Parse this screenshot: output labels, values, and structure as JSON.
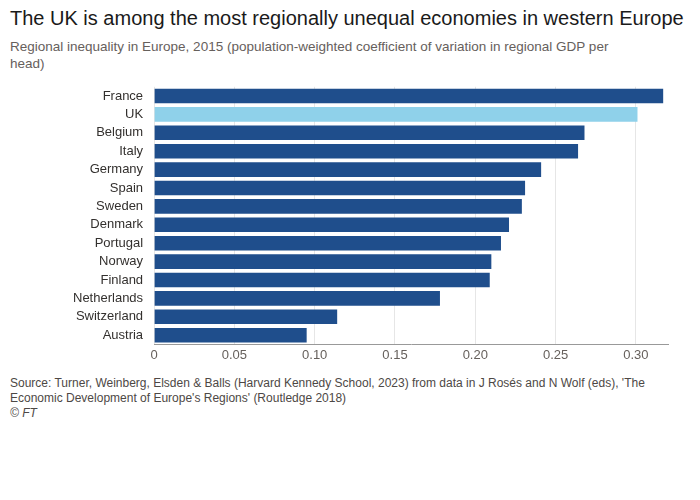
{
  "chart_data": {
    "type": "bar",
    "orientation": "horizontal",
    "title": "The UK is among the most regionally unequal economies in western Europe",
    "subtitle": "Regional inequality in Europe, 2015 (population-weighted coefficient of variation in regional GDP per head)",
    "source": "Source: Turner, Weinberg, Elsden & Balls (Harvard Kennedy School, 2023) from data in J Rosés and N Wolf (eds), 'The Economic Development of Europe's Regions' (Routledge 2018)",
    "credit": "© FT",
    "categories": [
      "France",
      "UK",
      "Belgium",
      "Italy",
      "Germany",
      "Spain",
      "Sweden",
      "Denmark",
      "Portugal",
      "Norway",
      "Finland",
      "Netherlands",
      "Switzerland",
      "Austria"
    ],
    "values": [
      0.317,
      0.301,
      0.268,
      0.264,
      0.241,
      0.231,
      0.229,
      0.221,
      0.216,
      0.21,
      0.209,
      0.178,
      0.114,
      0.095
    ],
    "colors": [
      "#1f4e8c",
      "#8fd1ea",
      "#1f4e8c",
      "#1f4e8c",
      "#1f4e8c",
      "#1f4e8c",
      "#1f4e8c",
      "#1f4e8c",
      "#1f4e8c",
      "#1f4e8c",
      "#1f4e8c",
      "#1f4e8c",
      "#1f4e8c",
      "#1f4e8c"
    ],
    "xlim": [
      0,
      0.32
    ],
    "xticks": [
      0,
      0.05,
      {
        "value": 0.1,
        "label": "0.10"
      },
      0.15,
      {
        "value": 0.2,
        "label": "0.20"
      },
      0.25,
      {
        "value": 0.3,
        "label": "0.30"
      }
    ],
    "grid": true
  }
}
